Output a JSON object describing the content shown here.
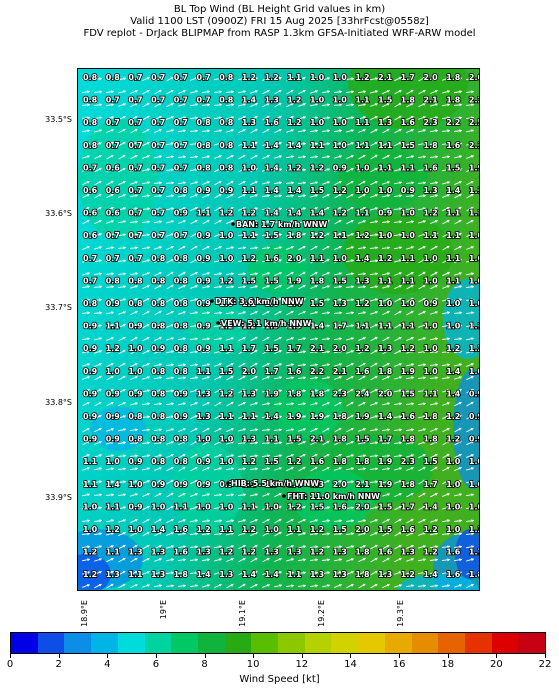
{
  "titles": [
    "BL Top Wind (BL Height Grid values in km)",
    "Valid 1100 LST (0900Z) FRI 15 Aug 2025 [33hrFcst@0558z]",
    "FDV replot - DrJack BLIPMAP from RASP 1.3km GFSA-Initiated WRF-ARW model"
  ],
  "lat_labels": [
    "33.5°S",
    "33.6°S",
    "33.7°S",
    "33.8°S",
    "33.9°S"
  ],
  "lon_labels": [
    "18.9°E",
    "19°E",
    "19.1°E",
    "19.2°E",
    "19.3°E"
  ],
  "colorbar": {
    "label": "Wind Speed [kt]",
    "ticks": [
      "0",
      "2",
      "4",
      "6",
      "8",
      "10",
      "12",
      "14",
      "16",
      "18",
      "20",
      "22"
    ],
    "colors": [
      "#0000e6",
      "#0f4de8",
      "#0a8ee8",
      "#00b4e6",
      "#00dcdc",
      "#00d2a0",
      "#00c864",
      "#10b43c",
      "#28aa14",
      "#5abe00",
      "#8cc800",
      "#b4d200",
      "#d2d200",
      "#e6c800",
      "#e6aa00",
      "#e68c00",
      "#e66400",
      "#e63200",
      "#dc0000",
      "#c80014"
    ]
  },
  "grid_values": [
    [
      "0.8",
      "0.8",
      "0.7",
      "0.7",
      "0.7",
      "0.7",
      "0.8",
      "1.2",
      "1.2",
      "1.1",
      "1.0",
      "1.0",
      "1.2",
      "2.1",
      "1.7",
      "2.0",
      "1.8",
      "2.0"
    ],
    [
      "0.8",
      "0.7",
      "0.7",
      "0.7",
      "0.7",
      "0.7",
      "0.8",
      "1.4",
      "1.3",
      "1.2",
      "1.0",
      "1.0",
      "1.1",
      "1.5",
      "1.8",
      "2.1",
      "1.8",
      "2.2"
    ],
    [
      "0.8",
      "0.7",
      "0.7",
      "0.7",
      "0.7",
      "0.8",
      "0.8",
      "1.3",
      "1.6",
      "1.2",
      "1.0",
      "1.0",
      "1.1",
      "1.3",
      "1.6",
      "2.3",
      "2.2",
      "2.5"
    ],
    [
      "0.8",
      "0.7",
      "0.7",
      "0.7",
      "0.7",
      "0.8",
      "0.8",
      "1.1",
      "1.4",
      "1.4",
      "1.1",
      "1.0",
      "1.1",
      "1.1",
      "1.5",
      "1.8",
      "1.6",
      "2.1"
    ],
    [
      "0.7",
      "0.6",
      "0.7",
      "0.7",
      "0.7",
      "0.8",
      "0.8",
      "1.0",
      "1.4",
      "1.2",
      "1.2",
      "0.9",
      "1.0",
      "1.1",
      "1.1",
      "1.6",
      "1.5",
      "1.9"
    ],
    [
      "0.6",
      "0.6",
      "0.7",
      "0.7",
      "0.8",
      "0.9",
      "0.9",
      "1.1",
      "1.4",
      "1.4",
      "1.5",
      "1.2",
      "1.0",
      "1.0",
      "0.9",
      "1.3",
      "1.4",
      "1.1"
    ],
    [
      "0.6",
      "0.6",
      "0.7",
      "0.7",
      "0.9",
      "1.1",
      "1.2",
      "1.2",
      "1.4",
      "1.4",
      "1.4",
      "1.2",
      "1.1",
      "0.9",
      "1.0",
      "1.2",
      "1.1",
      "1.1"
    ],
    [
      "0.6",
      "0.7",
      "0.7",
      "0.7",
      "0.7",
      "0.9",
      "1.0",
      "1.1",
      "1.5",
      "1.8",
      "1.2",
      "1.1",
      "1.2",
      "1.0",
      "1.0",
      "1.1",
      "1.1",
      "1.0"
    ],
    [
      "0.7",
      "0.7",
      "0.7",
      "0.8",
      "0.8",
      "0.9",
      "1.0",
      "1.2",
      "1.6",
      "2.0",
      "1.1",
      "1.0",
      "1.4",
      "1.2",
      "1.1",
      "1.0",
      "1.1",
      "1.0"
    ],
    [
      "0.7",
      "0.8",
      "0.8",
      "0.8",
      "0.8",
      "0.9",
      "1.2",
      "1.5",
      "1.5",
      "1.9",
      "1.8",
      "1.5",
      "1.3",
      "1.1",
      "1.1",
      "1.0",
      "1.1",
      "1.0"
    ],
    [
      "0.8",
      "0.9",
      "0.8",
      "0.8",
      "0.8",
      "0.9",
      "1.0",
      "1.1",
      "1.0",
      "1.4",
      "1.5",
      "1.3",
      "1.2",
      "1.0",
      "1.0",
      "0.9",
      "1.0",
      "1.0"
    ],
    [
      "0.9",
      "1.1",
      "0.9",
      "0.8",
      "0.8",
      "0.9",
      "1.2",
      "1.2",
      "1.3",
      "1.3",
      "1.4",
      "1.7",
      "1.1",
      "1.1",
      "1.1",
      "1.0",
      "1.0",
      "1.1"
    ],
    [
      "0.9",
      "1.2",
      "1.0",
      "0.9",
      "0.8",
      "0.9",
      "1.1",
      "1.7",
      "1.5",
      "1.7",
      "2.1",
      "2.0",
      "1.2",
      "1.3",
      "1.2",
      "1.0",
      "1.2",
      "1.2"
    ],
    [
      "0.9",
      "1.0",
      "1.0",
      "0.8",
      "0.8",
      "1.1",
      "1.5",
      "2.0",
      "1.7",
      "1.6",
      "2.2",
      "2.1",
      "1.6",
      "1.8",
      "1.9",
      "1.0",
      "1.4",
      "1.0"
    ],
    [
      "0.9",
      "0.9",
      "0.9",
      "0.8",
      "0.9",
      "1.3",
      "1.2",
      "1.3",
      "1.9",
      "1.8",
      "1.8",
      "2.3",
      "2.4",
      "2.0",
      "1.5",
      "1.1",
      "1.4",
      "0.9"
    ],
    [
      "0.9",
      "0.9",
      "0.8",
      "0.8",
      "0.9",
      "1.3",
      "1.1",
      "1.1",
      "1.4",
      "1.9",
      "1.9",
      "1.8",
      "1.9",
      "1.4",
      "1.6",
      "1.8",
      "1.2",
      "0.9"
    ],
    [
      "0.9",
      "0.9",
      "0.8",
      "0.8",
      "0.8",
      "1.0",
      "1.0",
      "1.3",
      "1.1",
      "1.5",
      "2.1",
      "1.8",
      "1.5",
      "1.7",
      "1.8",
      "1.8",
      "1.2",
      "0.9"
    ],
    [
      "1.1",
      "1.0",
      "0.9",
      "0.8",
      "0.8",
      "0.9",
      "1.0",
      "1.2",
      "1.5",
      "1.2",
      "1.6",
      "1.8",
      "1.8",
      "1.9",
      "2.3",
      "1.5",
      "1.0",
      "1.0"
    ],
    [
      "1.1",
      "1.4",
      "1.0",
      "0.9",
      "0.9",
      "0.9",
      "0.9",
      "1.1",
      "1.7",
      "1.4",
      "1.3",
      "2.0",
      "2.1",
      "1.9",
      "1.8",
      "1.7",
      "1.0",
      "1.0"
    ],
    [
      "1.0",
      "1.1",
      "0.9",
      "1.0",
      "1.1",
      "1.0",
      "1.0",
      "1.1",
      "1.0",
      "1.2",
      "1.5",
      "1.6",
      "2.0",
      "1.5",
      "1.7",
      "1.4",
      "1.0",
      "1.0"
    ],
    [
      "1.0",
      "1.2",
      "1.0",
      "1.4",
      "1.6",
      "1.2",
      "1.1",
      "1.2",
      "1.0",
      "1.1",
      "1.2",
      "1.5",
      "2.0",
      "1.5",
      "1.6",
      "1.2",
      "1.0",
      "1.3"
    ],
    [
      "1.2",
      "1.1",
      "1.3",
      "1.3",
      "1.6",
      "1.3",
      "1.2",
      "1.2",
      "1.3",
      "1.3",
      "1.2",
      "1.3",
      "1.8",
      "1.6",
      "1.3",
      "1.2",
      "1.6",
      "1.7"
    ],
    [
      "1.2",
      "1.3",
      "1.1",
      "1.3",
      "1.8",
      "1.4",
      "1.3",
      "1.4",
      "1.4",
      "1.1",
      "1.3",
      "1.3",
      "1.8",
      "1.3",
      "1.2",
      "1.4",
      "1.6",
      "1.8"
    ]
  ],
  "stations": [
    {
      "label": "BAN: 1.7 km/h WNW"
    },
    {
      "label": "DTK: 3.6 km/h NNW"
    },
    {
      "label": "VEW: 5.1 km/h NNW"
    },
    {
      "label": "HIB: 5.5 km/h WNW"
    },
    {
      "label": "FHT: 11.0 km/h NNW"
    }
  ]
}
